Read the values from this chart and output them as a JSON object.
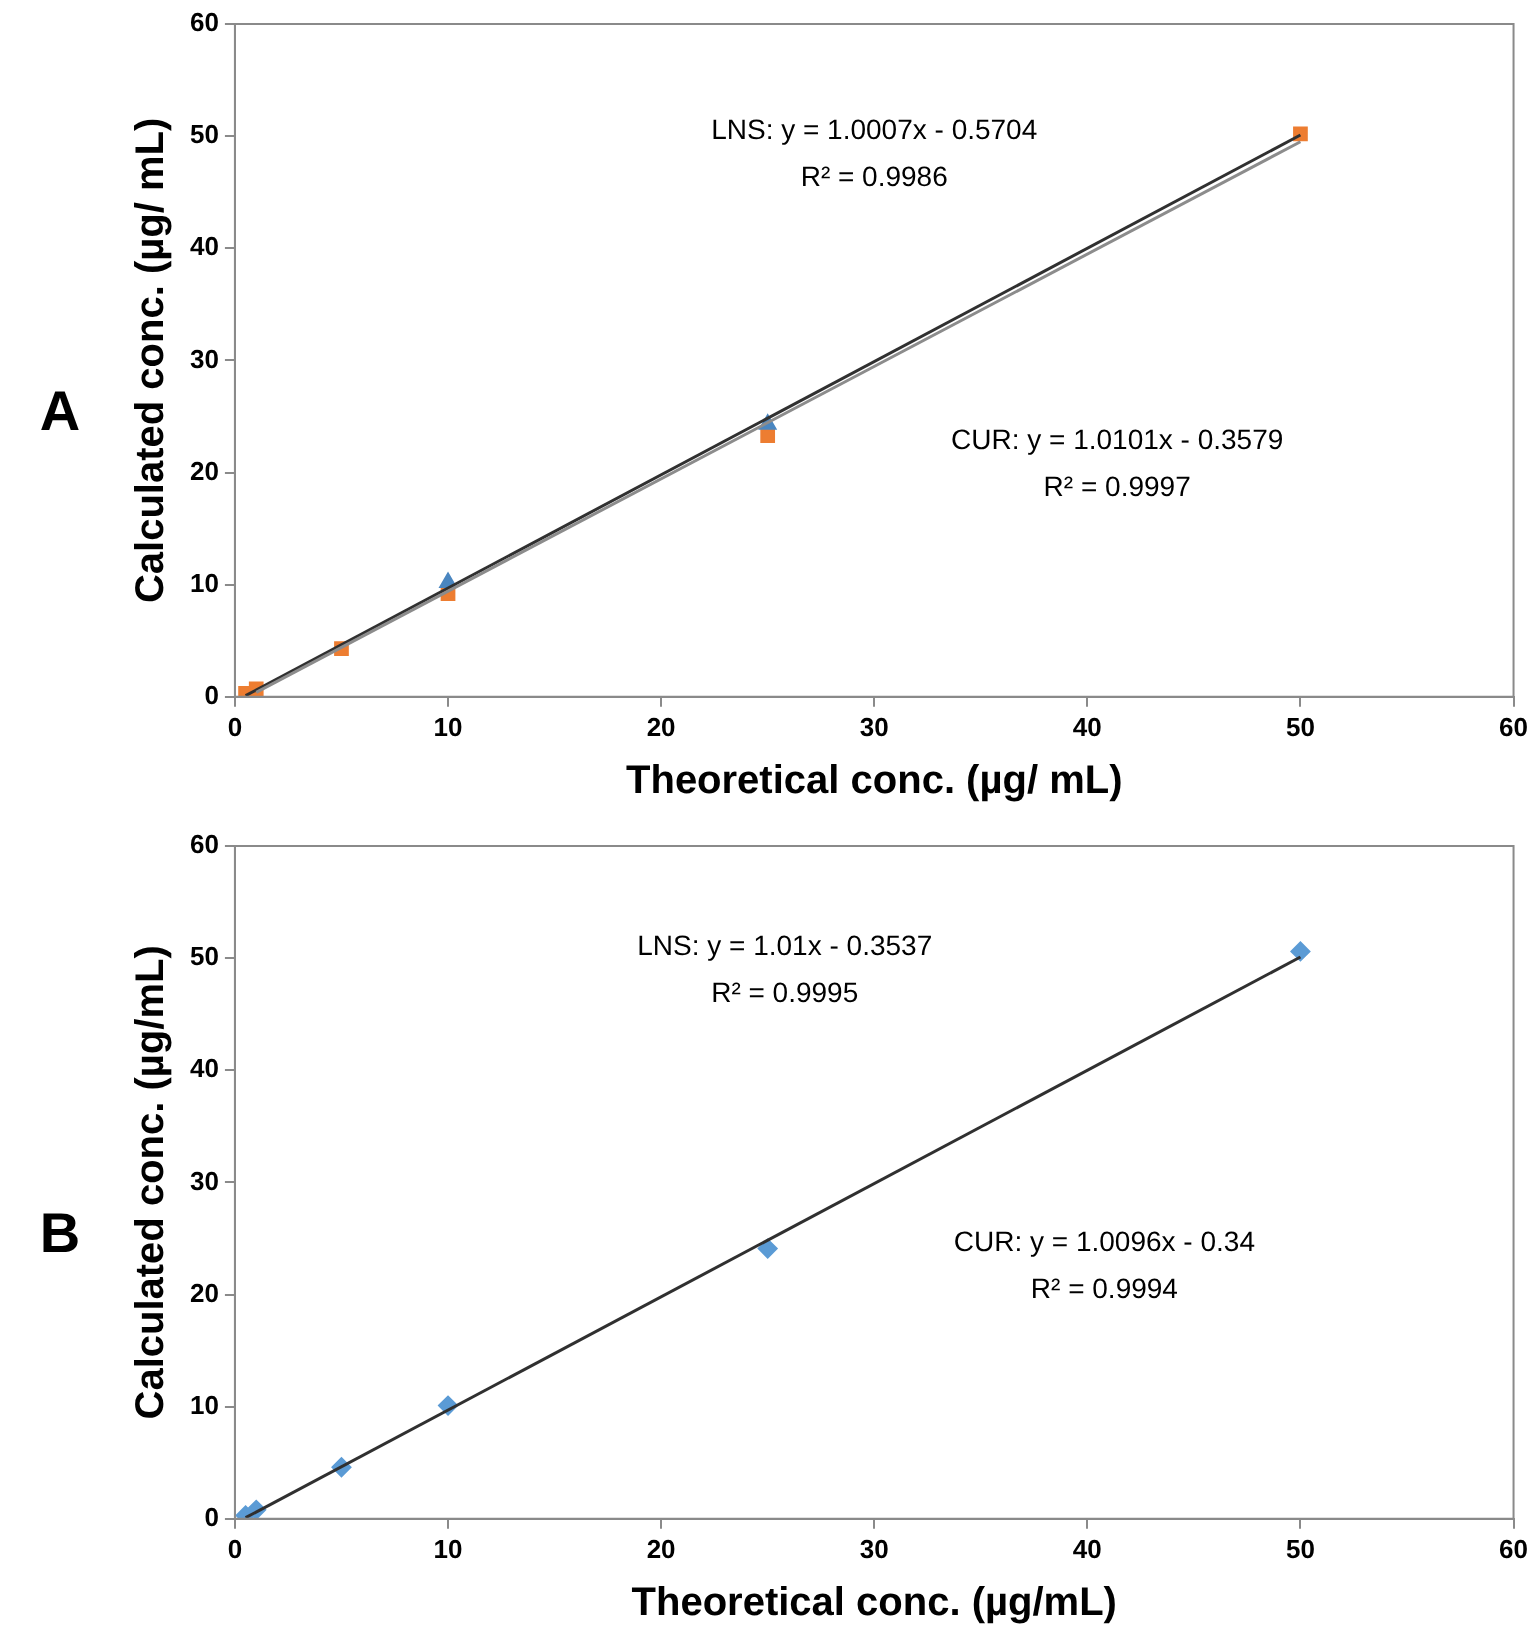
{
  "chart_data": [
    {
      "type": "scatter",
      "xlabel": "Theoretical conc. (µg/ mL)",
      "ylabel": "Calculated conc. (µg/ mL)",
      "xlim": [
        0,
        60
      ],
      "xticks": [
        0,
        10,
        20,
        30,
        40,
        50,
        60
      ],
      "ylim": [
        0,
        60
      ],
      "yticks": [
        0,
        10,
        20,
        30,
        40,
        50,
        60
      ],
      "grid": false,
      "legend": false,
      "series": [
        {
          "type": "line",
          "color": "#8c8c8c",
          "x": [
            1,
            50
          ],
          "values": [
            0.4,
            49.5
          ],
          "marker": "none"
        },
        {
          "type": "line",
          "color": "#303030",
          "x": [
            0.5,
            50
          ],
          "values": [
            0.1,
            50.1
          ],
          "marker": "none"
        },
        {
          "color": "#4a86c0",
          "x": [
            10,
            25
          ],
          "values": [
            10.2,
            24.3
          ],
          "marker": "triangle"
        },
        {
          "color": "#ed7d31",
          "x": [
            0.5,
            1,
            5,
            10,
            25,
            50
          ],
          "values": [
            0.3,
            0.7,
            4.3,
            9.2,
            23.3,
            50.2
          ],
          "marker": "square"
        }
      ],
      "annotations": [
        "A",
        "LNS: y = 1.0007x - 0.5704",
        "R² = 0.9986",
        "CUR: y = 1.0101x - 0.3579",
        "R² = 0.9997"
      ]
    },
    {
      "type": "scatter",
      "xlabel": "Theoretical conc. (µg/mL)",
      "ylabel": "Calculated conc. (µg/mL)",
      "xlim": [
        0,
        60
      ],
      "xticks": [
        0,
        10,
        20,
        30,
        40,
        50,
        60
      ],
      "ylim": [
        0,
        60
      ],
      "yticks": [
        0,
        10,
        20,
        30,
        40,
        50,
        60
      ],
      "grid": false,
      "legend": false,
      "series": [
        {
          "type": "line",
          "color": "#303030",
          "x": [
            0.5,
            50
          ],
          "values": [
            0.1,
            50.1
          ],
          "marker": "none"
        },
        {
          "color": "#5b9bd5",
          "x": [
            0.5,
            1,
            5,
            10,
            25,
            50
          ],
          "values": [
            0.3,
            0.8,
            4.6,
            10.1,
            24.1,
            50.6
          ],
          "marker": "diamond"
        }
      ],
      "annotations": [
        "B",
        "LNS: y = 1.01x - 0.3537",
        "R² = 0.9995",
        "CUR: y = 1.0096x - 0.34",
        "R² = 0.9994"
      ]
    }
  ]
}
